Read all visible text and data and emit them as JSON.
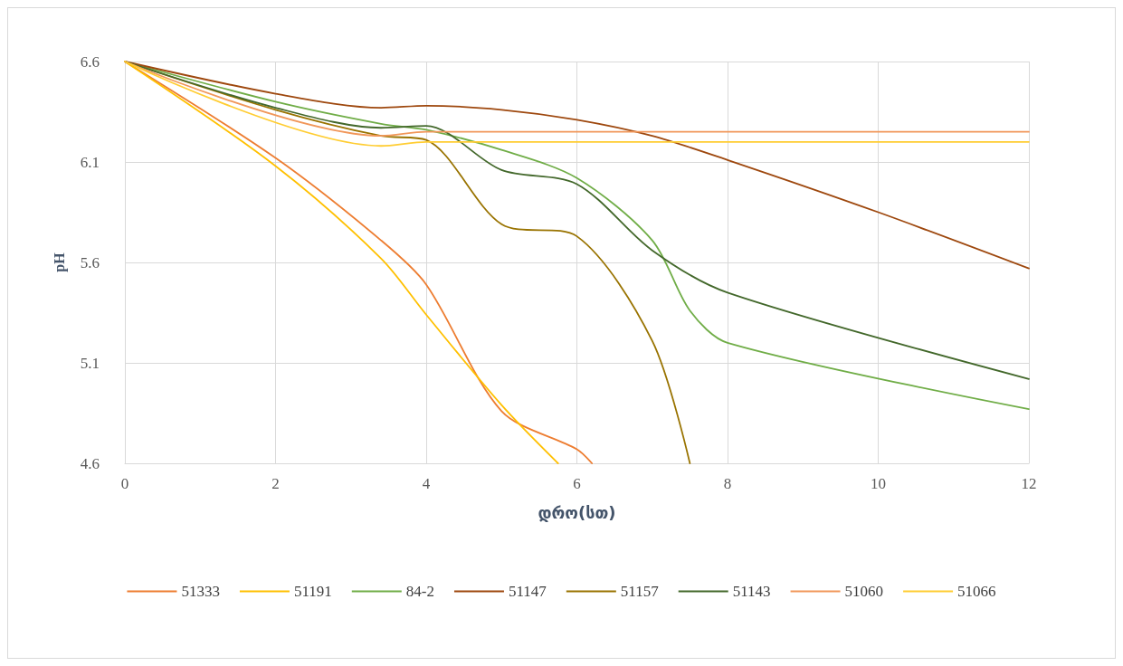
{
  "chart_data": {
    "type": "line",
    "xlabel": "დრო(სთ)",
    "ylabel": "pH",
    "xlim": [
      0,
      12
    ],
    "xticks": [
      0,
      2,
      4,
      6,
      8,
      10,
      12
    ],
    "ylim": [
      4.6,
      6.6
    ],
    "yticks": [
      4.6,
      5.1,
      5.6,
      6.1,
      6.6
    ],
    "grid": true,
    "legend": "bottom",
    "marker": "none",
    "line_style": "solid",
    "series": [
      {
        "name": "51333",
        "color": "#ed7d31",
        "x": [
          0,
          2,
          3.4,
          4,
          5,
          6,
          6.2
        ],
        "values": [
          6.6,
          6.12,
          5.71,
          5.49,
          4.86,
          4.67,
          4.6
        ]
      },
      {
        "name": "51191",
        "color": "#ffc000",
        "x": [
          0,
          2,
          3.4,
          4,
          5,
          5.75
        ],
        "values": [
          6.6,
          6.08,
          5.62,
          5.34,
          4.89,
          4.6
        ]
      },
      {
        "name": "84-2",
        "color": "#70ad47",
        "x": [
          0,
          2,
          3.4,
          4,
          5,
          6,
          7,
          7.5,
          8,
          12
        ],
        "values": [
          6.6,
          6.4,
          6.29,
          6.26,
          6.16,
          6.02,
          5.71,
          5.36,
          5.2,
          4.87
        ]
      },
      {
        "name": "51147",
        "color": "#9e480e",
        "x": [
          0,
          2,
          3.4,
          4,
          5,
          6,
          7,
          8,
          10,
          12
        ],
        "values": [
          6.6,
          6.44,
          6.37,
          6.38,
          6.36,
          6.31,
          6.23,
          6.11,
          5.85,
          5.57
        ]
      },
      {
        "name": "51157",
        "color": "#997300",
        "x": [
          0,
          2,
          3.4,
          4,
          5,
          6,
          7,
          7.5
        ],
        "values": [
          6.6,
          6.36,
          6.23,
          6.21,
          5.79,
          5.73,
          5.21,
          4.6
        ]
      },
      {
        "name": "51143",
        "color": "#43682b",
        "x": [
          0,
          2,
          3.4,
          4,
          5,
          6,
          7,
          8,
          12
        ],
        "values": [
          6.6,
          6.37,
          6.27,
          6.28,
          6.06,
          5.99,
          5.66,
          5.45,
          5.02
        ]
      },
      {
        "name": "51060",
        "color": "#f1975a",
        "x": [
          0,
          3.4,
          4,
          12
        ],
        "values": [
          6.6,
          6.23,
          6.25,
          6.25
        ]
      },
      {
        "name": "51066",
        "color": "#ffcd33",
        "x": [
          0,
          3.4,
          4,
          12
        ],
        "values": [
          6.6,
          6.18,
          6.2,
          6.2
        ]
      }
    ]
  }
}
